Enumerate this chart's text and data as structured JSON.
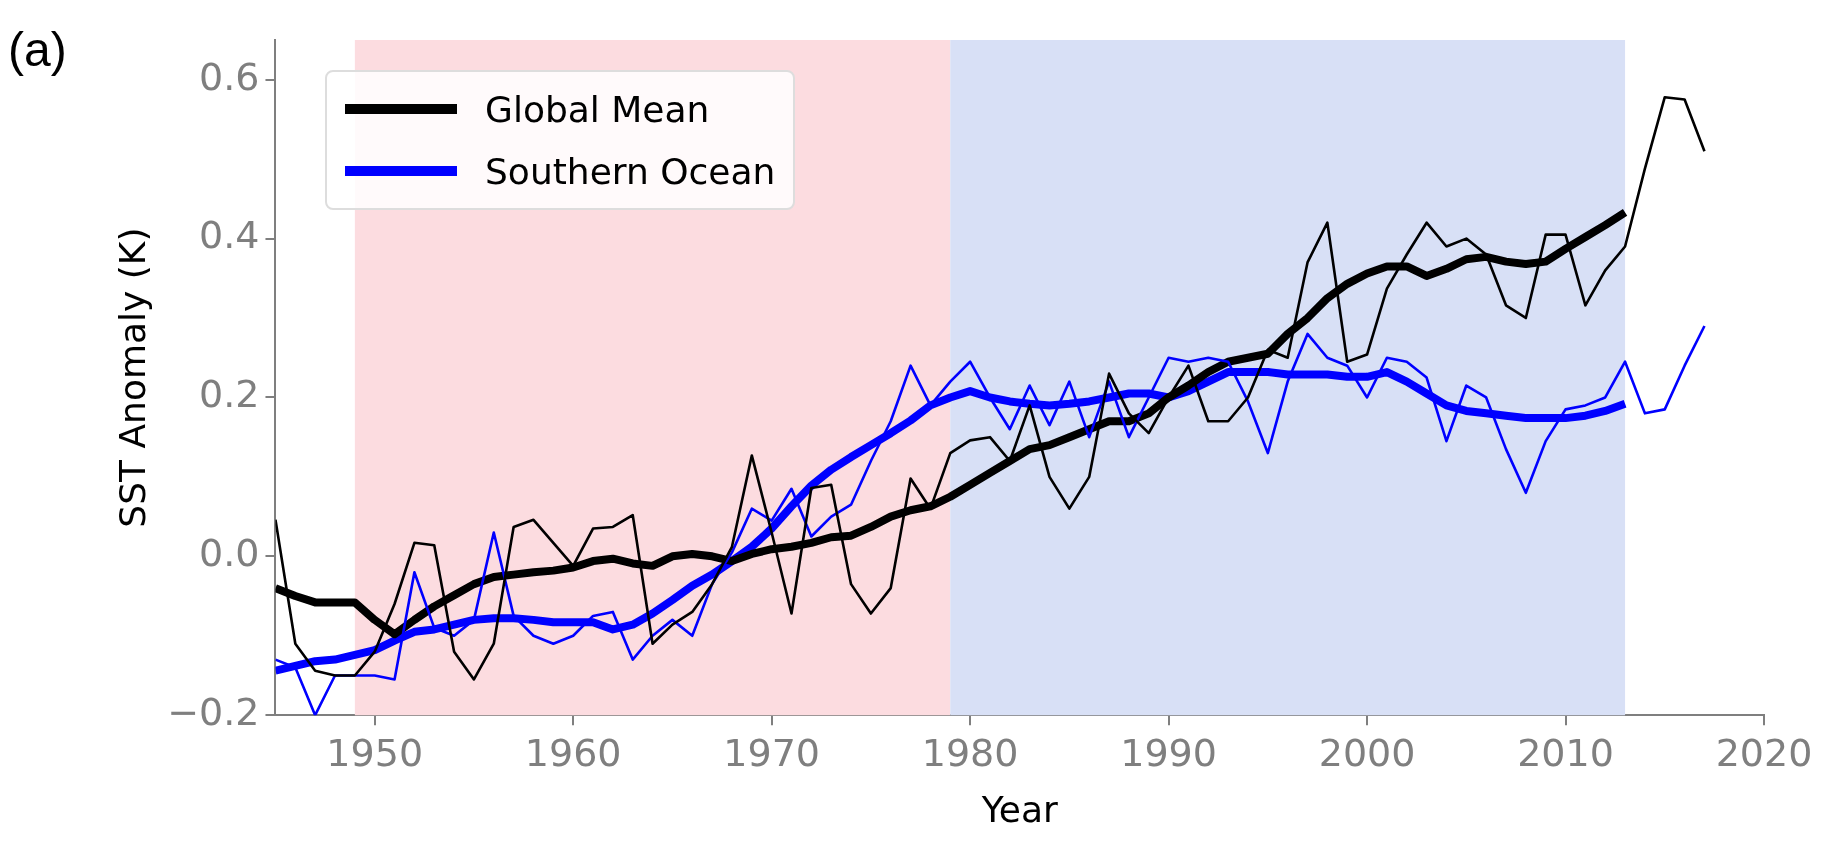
{
  "chart_data": {
    "type": "line",
    "xlabel": "Year",
    "ylabel": "SST Anomaly (K)",
    "annotations": [
      "(a)"
    ],
    "x": [
      1945,
      1946,
      1947,
      1948,
      1949,
      1950,
      1951,
      1952,
      1953,
      1954,
      1955,
      1956,
      1957,
      1958,
      1959,
      1960,
      1961,
      1962,
      1963,
      1964,
      1965,
      1966,
      1967,
      1968,
      1969,
      1970,
      1971,
      1972,
      1973,
      1974,
      1975,
      1976,
      1977,
      1978,
      1979,
      1980,
      1981,
      1982,
      1983,
      1984,
      1985,
      1986,
      1987,
      1988,
      1989,
      1990,
      1991,
      1992,
      1993,
      1994,
      1995,
      1996,
      1997,
      1998,
      1999,
      2000,
      2001,
      2002,
      2003,
      2004,
      2005,
      2006,
      2007,
      2008,
      2009,
      2010,
      2011,
      2012,
      2013,
      2014,
      2015,
      2016,
      2017
    ],
    "series": [
      {
        "color": "#000000",
        "values": [
          0.046,
          -0.11,
          -0.144,
          -0.15,
          -0.15,
          -0.12,
          -0.06,
          0.017,
          0.014,
          -0.12,
          -0.155,
          -0.11,
          0.037,
          0.046,
          0.017,
          -0.012,
          0.035,
          0.037,
          0.052,
          -0.11,
          -0.086,
          -0.07,
          -0.035,
          0.012,
          0.127,
          0.03,
          -0.072,
          0.086,
          0.09,
          -0.035,
          -0.072,
          -0.04,
          0.098,
          0.06,
          0.13,
          0.146,
          0.15,
          0.12,
          0.19,
          0.1,
          0.06,
          0.1,
          0.23,
          0.18,
          0.155,
          0.2,
          0.24,
          0.17,
          0.17,
          0.2,
          0.26,
          0.25,
          0.37,
          0.42,
          0.245,
          0.254,
          0.337,
          0.38,
          0.42,
          0.39,
          0.4,
          0.38,
          0.316,
          0.3,
          0.405,
          0.405,
          0.316,
          0.36,
          0.39,
          0.488,
          0.578,
          0.575,
          0.51
        ]
      },
      {
        "color": "#0000ff",
        "values": [
          -0.13,
          -0.14,
          -0.2,
          -0.15,
          -0.15,
          -0.15,
          -0.155,
          -0.02,
          -0.09,
          -0.1,
          -0.08,
          0.03,
          -0.075,
          -0.1,
          -0.11,
          -0.1,
          -0.075,
          -0.07,
          -0.13,
          -0.1,
          -0.08,
          -0.1,
          -0.035,
          0.005,
          0.06,
          0.045,
          0.085,
          0.025,
          0.05,
          0.065,
          0.12,
          0.17,
          0.24,
          0.19,
          0.22,
          0.245,
          0.2,
          0.16,
          0.215,
          0.165,
          0.22,
          0.15,
          0.22,
          0.15,
          0.2,
          0.25,
          0.245,
          0.25,
          0.245,
          0.195,
          0.13,
          0.22,
          0.28,
          0.25,
          0.24,
          0.2,
          0.25,
          0.245,
          0.225,
          0.145,
          0.215,
          0.2,
          0.135,
          0.08,
          0.145,
          0.185,
          0.19,
          0.2,
          0.245,
          0.18,
          0.185,
          0.24,
          0.29
        ]
      },
      {
        "name": "Global Mean",
        "color": "#000000",
        "x": [
          1945,
          1946,
          1947,
          1948,
          1949,
          1950,
          1951,
          1952,
          1953,
          1954,
          1955,
          1956,
          1957,
          1958,
          1959,
          1960,
          1961,
          1962,
          1963,
          1964,
          1965,
          1966,
          1967,
          1968,
          1969,
          1970,
          1971,
          1972,
          1973,
          1974,
          1975,
          1976,
          1977,
          1978,
          1979,
          1980,
          1981,
          1982,
          1983,
          1984,
          1985,
          1986,
          1987,
          1988,
          1989,
          1990,
          1991,
          1992,
          1993,
          1994,
          1995,
          1996,
          1997,
          1998,
          1999,
          2000,
          2001,
          2002,
          2003,
          2004,
          2005,
          2006,
          2007,
          2008,
          2009,
          2010,
          2011,
          2012,
          2013
        ],
        "values": [
          -0.04,
          -0.05,
          -0.058,
          -0.058,
          -0.058,
          -0.08,
          -0.098,
          -0.08,
          -0.063,
          -0.049,
          -0.035,
          -0.026,
          -0.023,
          -0.02,
          -0.018,
          -0.014,
          -0.006,
          -0.003,
          -0.009,
          -0.012,
          0,
          0.003,
          0,
          -0.006,
          0.003,
          0.009,
          0.012,
          0.017,
          0.024,
          0.026,
          0.037,
          0.05,
          0.058,
          0.063,
          0.075,
          0.09,
          0.105,
          0.12,
          0.135,
          0.14,
          0.15,
          0.16,
          0.17,
          0.17,
          0.18,
          0.2,
          0.215,
          0.232,
          0.245,
          0.25,
          0.255,
          0.28,
          0.3,
          0.325,
          0.343,
          0.356,
          0.365,
          0.365,
          0.353,
          0.362,
          0.374,
          0.377,
          0.371,
          0.368,
          0.371,
          0.387,
          0.402,
          0.417,
          0.433
        ]
      },
      {
        "name": "Southern Ocean",
        "color": "#0000ff",
        "x": [
          1945,
          1946,
          1947,
          1948,
          1949,
          1950,
          1951,
          1952,
          1953,
          1954,
          1955,
          1956,
          1957,
          1958,
          1959,
          1960,
          1961,
          1962,
          1963,
          1964,
          1965,
          1966,
          1967,
          1968,
          1969,
          1970,
          1971,
          1972,
          1973,
          1974,
          1975,
          1976,
          1977,
          1978,
          1979,
          1980,
          1981,
          1982,
          1983,
          1984,
          1985,
          1986,
          1987,
          1988,
          1989,
          1990,
          1991,
          1992,
          1993,
          1994,
          1995,
          1996,
          1997,
          1998,
          1999,
          2000,
          2001,
          2002,
          2003,
          2004,
          2005,
          2006,
          2007,
          2008,
          2009,
          2010,
          2011,
          2012,
          2013
        ],
        "values": [
          -0.144,
          -0.138,
          -0.132,
          -0.13,
          -0.124,
          -0.118,
          -0.106,
          -0.095,
          -0.092,
          -0.086,
          -0.08,
          -0.078,
          -0.078,
          -0.08,
          -0.083,
          -0.083,
          -0.083,
          -0.092,
          -0.086,
          -0.072,
          -0.055,
          -0.037,
          -0.023,
          -0.006,
          0.012,
          0.035,
          0.063,
          0.089,
          0.109,
          0.125,
          0.14,
          0.155,
          0.171,
          0.19,
          0.2,
          0.208,
          0.2,
          0.195,
          0.192,
          0.19,
          0.192,
          0.195,
          0.2,
          0.205,
          0.205,
          0.2,
          0.208,
          0.22,
          0.232,
          0.232,
          0.232,
          0.229,
          0.229,
          0.229,
          0.226,
          0.226,
          0.232,
          0.22,
          0.205,
          0.19,
          0.183,
          0.18,
          0.177,
          0.174,
          0.174,
          0.174,
          0.177,
          0.183,
          0.192
        ]
      }
    ],
    "bands": [
      {
        "axis": "x",
        "from": 1949,
        "to": 1979,
        "color": "#fcdce0"
      },
      {
        "axis": "x",
        "from": 1979,
        "to": 2013,
        "color": "#d8e0f6"
      }
    ],
    "xlim": [
      1945,
      2020
    ],
    "xticks": [
      1950,
      1960,
      1970,
      1980,
      1990,
      2000,
      2010,
      2020
    ],
    "ylim": [
      -0.2,
      0.65
    ],
    "yticks": [
      {
        "value": -0.2,
        "label": "−0.2"
      },
      {
        "value": 0,
        "label": "0.0"
      },
      0.2,
      0.4,
      0.6
    ],
    "grid": false,
    "legend": "top left",
    "marker": "none",
    "line_style": "solid"
  }
}
